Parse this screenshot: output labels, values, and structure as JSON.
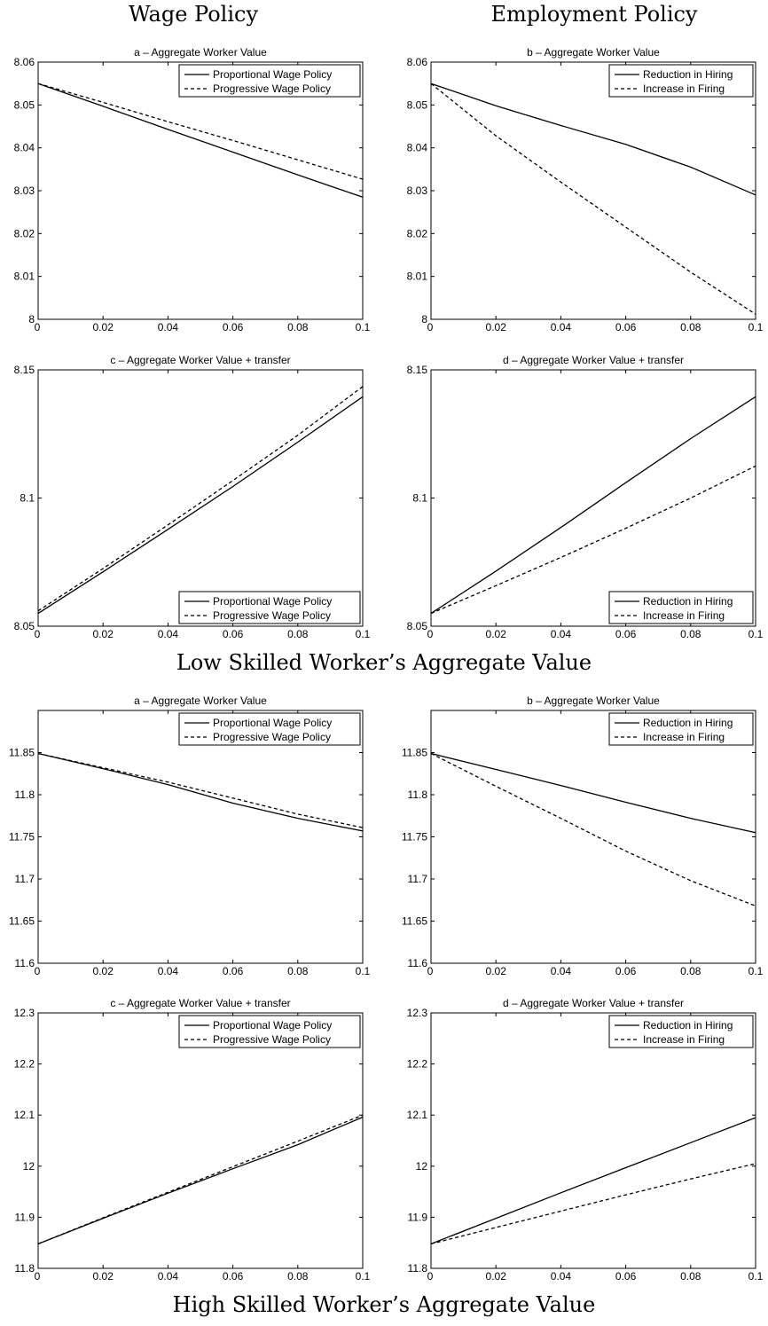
{
  "headers": {
    "left": "Wage Policy",
    "right": "Employment Policy"
  },
  "sections": {
    "low": "Low Skilled Worker’s Aggregate Value",
    "high": "High Skilled Worker’s Aggregate Value"
  },
  "chart_data": [
    {
      "id": "low-a",
      "type": "line",
      "title": "a – Aggregate Worker Value",
      "xlim": [
        0,
        0.1
      ],
      "ylim": [
        8,
        8.06
      ],
      "xticks": [
        "0",
        "0.02",
        "0.04",
        "0.06",
        "0.08",
        "0.1"
      ],
      "yticks": [
        "8",
        "8.01",
        "8.02",
        "8.03",
        "8.04",
        "8.05",
        "8.06"
      ],
      "legend": "top-right",
      "series": [
        {
          "name": "Proportional Wage Policy",
          "style": "solid",
          "x": [
            0,
            0.02,
            0.04,
            0.06,
            0.08,
            0.1
          ],
          "y": [
            8.055,
            8.0497,
            8.0443,
            8.039,
            8.0337,
            8.0285
          ]
        },
        {
          "name": "Progressive Wage Policy",
          "style": "dashed",
          "x": [
            0,
            0.02,
            0.04,
            0.06,
            0.08,
            0.1
          ],
          "y": [
            8.055,
            8.0506,
            8.0461,
            8.0417,
            8.0372,
            8.0327
          ]
        }
      ]
    },
    {
      "id": "low-b",
      "type": "line",
      "title": "b – Aggregate Worker Value",
      "xlim": [
        0,
        0.1
      ],
      "ylim": [
        8,
        8.06
      ],
      "xticks": [
        "0",
        "0.02",
        "0.04",
        "0.06",
        "0.08",
        "0.1"
      ],
      "yticks": [
        "8",
        "8.01",
        "8.02",
        "8.03",
        "8.04",
        "8.05",
        "8.06"
      ],
      "legend": "top-right",
      "series": [
        {
          "name": "Reduction in Hiring",
          "style": "solid",
          "x": [
            0,
            0.02,
            0.04,
            0.06,
            0.08,
            0.1
          ],
          "y": [
            8.055,
            8.0498,
            8.0452,
            8.0408,
            8.0355,
            8.029
          ]
        },
        {
          "name": "Increase in Firing",
          "style": "dashed",
          "x": [
            0,
            0.02,
            0.04,
            0.06,
            0.08,
            0.1
          ],
          "y": [
            8.055,
            8.0428,
            8.032,
            8.0215,
            8.011,
            8.0012
          ]
        }
      ]
    },
    {
      "id": "low-c",
      "type": "line",
      "title": "c – Aggregate Worker Value + transfer",
      "xlim": [
        0,
        0.1
      ],
      "ylim": [
        8.05,
        8.15
      ],
      "xticks": [
        "0",
        "0.02",
        "0.04",
        "0.06",
        "0.08",
        "0.1"
      ],
      "yticks": [
        "8.05",
        "8.1",
        "8.15"
      ],
      "legend": "bottom-right",
      "series": [
        {
          "name": "Proportional Wage Policy",
          "style": "solid",
          "x": [
            0,
            0.02,
            0.04,
            0.06,
            0.08,
            0.1
          ],
          "y": [
            8.055,
            8.0712,
            8.0878,
            8.1045,
            8.1218,
            8.1395
          ]
        },
        {
          "name": "Progressive Wage Policy",
          "style": "dashed",
          "x": [
            0,
            0.02,
            0.04,
            0.06,
            0.08,
            0.1
          ],
          "y": [
            8.056,
            8.0725,
            8.0895,
            8.1068,
            8.1245,
            8.1435
          ]
        }
      ]
    },
    {
      "id": "low-d",
      "type": "line",
      "title": "d – Aggregate Worker Value + transfer",
      "xlim": [
        0,
        0.1
      ],
      "ylim": [
        8.05,
        8.15
      ],
      "xticks": [
        "0",
        "0.02",
        "0.04",
        "0.06",
        "0.08",
        "0.1"
      ],
      "yticks": [
        "8.05",
        "8.1",
        "8.15"
      ],
      "legend": "bottom-right",
      "series": [
        {
          "name": "Reduction in Hiring",
          "style": "solid",
          "x": [
            0,
            0.02,
            0.04,
            0.06,
            0.08,
            0.1
          ],
          "y": [
            8.055,
            8.0715,
            8.0885,
            8.106,
            8.1232,
            8.1395
          ]
        },
        {
          "name": "Increase in Firing",
          "style": "dashed",
          "x": [
            0,
            0.02,
            0.04,
            0.06,
            0.08,
            0.1
          ],
          "y": [
            8.055,
            8.0658,
            8.0768,
            8.0882,
            8.1,
            8.1125
          ]
        }
      ]
    },
    {
      "id": "high-a",
      "type": "line",
      "title": "a – Aggregate Worker Value",
      "xlim": [
        0,
        0.1
      ],
      "ylim": [
        11.6,
        11.9
      ],
      "xticks": [
        "0",
        "0.02",
        "0.04",
        "0.06",
        "0.08",
        "0.1"
      ],
      "yticks": [
        "11.6",
        "11.65",
        "11.7",
        "11.75",
        "11.8",
        "11.85"
      ],
      "legend": "top-right",
      "series": [
        {
          "name": "Proportional Wage Policy",
          "style": "solid",
          "x": [
            0,
            0.02,
            0.04,
            0.06,
            0.08,
            0.1
          ],
          "y": [
            11.849,
            11.831,
            11.812,
            11.79,
            11.772,
            11.757
          ]
        },
        {
          "name": "Progressive Wage Policy",
          "style": "dashed",
          "x": [
            0,
            0.02,
            0.04,
            0.06,
            0.08,
            0.1
          ],
          "y": [
            11.849,
            11.832,
            11.815,
            11.796,
            11.777,
            11.761
          ]
        }
      ]
    },
    {
      "id": "high-b",
      "type": "line",
      "title": "b – Aggregate Worker Value",
      "xlim": [
        0,
        0.1
      ],
      "ylim": [
        11.6,
        11.9
      ],
      "xticks": [
        "0",
        "0.02",
        "0.04",
        "0.06",
        "0.08",
        "0.1"
      ],
      "yticks": [
        "11.6",
        "11.65",
        "11.7",
        "11.75",
        "11.8",
        "11.85"
      ],
      "legend": "top-right",
      "series": [
        {
          "name": "Reduction in Hiring",
          "style": "solid",
          "x": [
            0,
            0.02,
            0.04,
            0.06,
            0.08,
            0.1
          ],
          "y": [
            11.849,
            11.83,
            11.811,
            11.791,
            11.772,
            11.755
          ]
        },
        {
          "name": "Increase in Firing",
          "style": "dashed",
          "x": [
            0,
            0.02,
            0.04,
            0.06,
            0.08,
            0.1
          ],
          "y": [
            11.849,
            11.81,
            11.772,
            11.733,
            11.698,
            11.668
          ]
        }
      ]
    },
    {
      "id": "high-c",
      "type": "line",
      "title": "c – Aggregate Worker Value + transfer",
      "xlim": [
        0,
        0.1
      ],
      "ylim": [
        11.8,
        12.3
      ],
      "xticks": [
        "0",
        "0.02",
        "0.04",
        "0.06",
        "0.08",
        "0.1"
      ],
      "yticks": [
        "11.8",
        "11.9",
        "12",
        "12.1",
        "12.2",
        "12.3"
      ],
      "legend": "top-right",
      "series": [
        {
          "name": "Proportional Wage Policy",
          "style": "solid",
          "x": [
            0,
            0.02,
            0.04,
            0.06,
            0.08,
            0.1
          ],
          "y": [
            11.848,
            11.898,
            11.947,
            11.995,
            12.042,
            12.096
          ]
        },
        {
          "name": "Progressive Wage Policy",
          "style": "dashed",
          "x": [
            0,
            0.02,
            0.04,
            0.06,
            0.08,
            0.1
          ],
          "y": [
            11.848,
            11.899,
            11.949,
            11.999,
            12.049,
            12.1
          ]
        }
      ]
    },
    {
      "id": "high-d",
      "type": "line",
      "title": "d – Aggregate Worker Value + transfer",
      "xlim": [
        0,
        0.1
      ],
      "ylim": [
        11.8,
        12.3
      ],
      "xticks": [
        "0",
        "0.02",
        "0.04",
        "0.06",
        "0.08",
        "0.1"
      ],
      "yticks": [
        "11.8",
        "11.9",
        "12",
        "12.1",
        "12.2",
        "12.3"
      ],
      "legend": "top-right",
      "series": [
        {
          "name": "Reduction in Hiring",
          "style": "solid",
          "x": [
            0,
            0.02,
            0.04,
            0.06,
            0.08,
            0.1
          ],
          "y": [
            11.848,
            11.898,
            11.948,
            11.997,
            12.046,
            12.095
          ]
        },
        {
          "name": "Increase in Firing",
          "style": "dashed",
          "x": [
            0,
            0.02,
            0.04,
            0.06,
            0.08,
            0.1
          ],
          "y": [
            11.848,
            11.88,
            11.912,
            11.944,
            11.975,
            12.005
          ]
        }
      ]
    }
  ]
}
